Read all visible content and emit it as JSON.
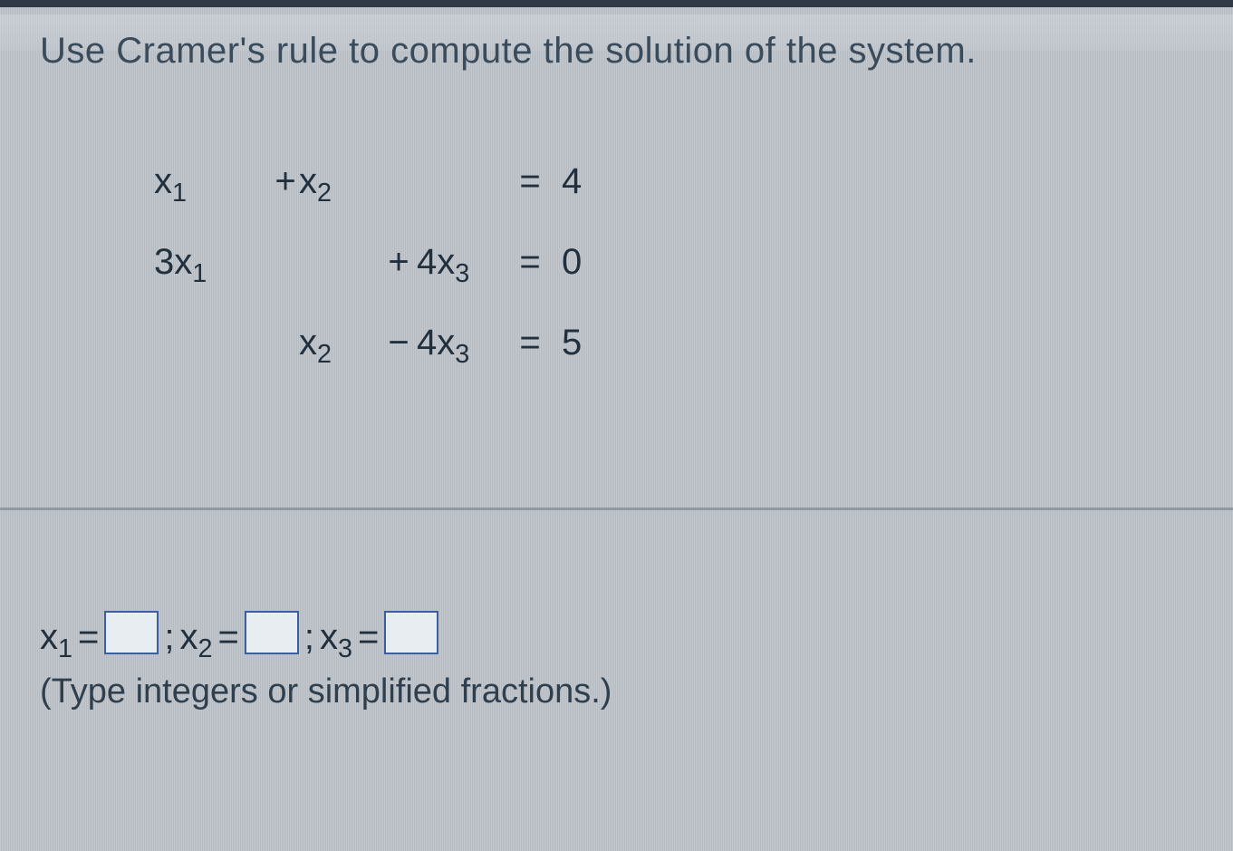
{
  "prompt": "Use Cramer's rule to compute the solution of the system.",
  "system": {
    "rows": [
      {
        "c1": "x",
        "s1": "1",
        "op1": "+",
        "c2": "x",
        "s2": "2",
        "op2": "",
        "c3": "",
        "s3": "",
        "rhs": "4"
      },
      {
        "c1": "3x",
        "s1": "1",
        "op1": "",
        "c2": "",
        "s2": "",
        "op2": "+",
        "c3": "4x",
        "s3": "3",
        "rhs": "0"
      },
      {
        "c1": "",
        "s1": "",
        "op1": "",
        "c2": "x",
        "s2": "2",
        "op2": "−",
        "c3": "4x",
        "s3": "3",
        "rhs": "5"
      }
    ]
  },
  "answer": {
    "x": "x",
    "sub1": "1",
    "sub2": "2",
    "sub3": "3",
    "eq": "=",
    "sep": ";",
    "hint": "(Type integers or simplified fractions.)"
  },
  "style": {
    "text_color": "#22303e",
    "prompt_color": "#3a4b5c",
    "box_border": "#3b5fa0",
    "background": "#b8c0c8",
    "font_size_prompt": 40,
    "font_size_eq": 40,
    "font_size_answer": 40
  }
}
